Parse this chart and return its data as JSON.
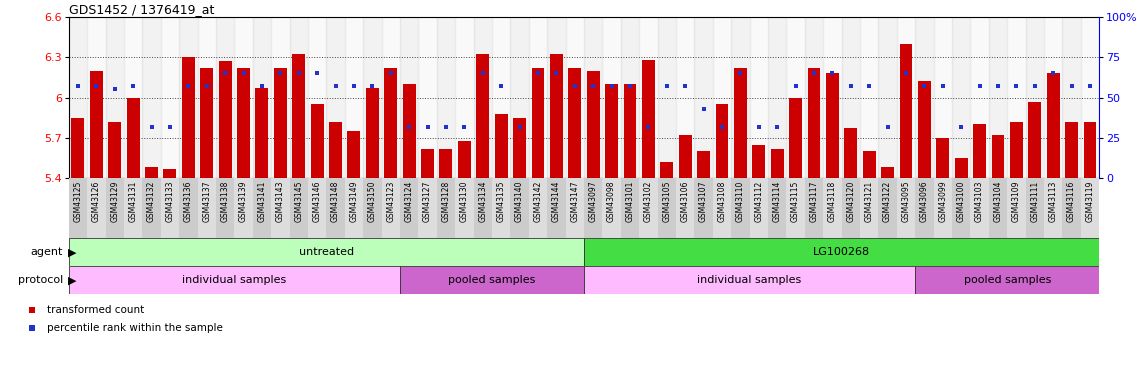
{
  "title": "GDS1452 / 1376419_at",
  "ylim": [
    5.4,
    6.6
  ],
  "yticks_left": [
    5.4,
    5.7,
    6.0,
    6.3,
    6.6
  ],
  "ytick_labels_left": [
    "5.4",
    "5.7",
    "6",
    "6.3",
    "6.6"
  ],
  "yticks_right_pct": [
    0,
    25,
    50,
    75,
    100
  ],
  "ytick_labels_right": [
    "0",
    "25",
    "50",
    "75",
    "100%"
  ],
  "bar_color": "#cc0000",
  "marker_color": "#2233cc",
  "samples": [
    "GSM43125",
    "GSM43126",
    "GSM43129",
    "GSM43131",
    "GSM43132",
    "GSM43133",
    "GSM43136",
    "GSM43137",
    "GSM43138",
    "GSM43139",
    "GSM43141",
    "GSM43143",
    "GSM43145",
    "GSM43146",
    "GSM43148",
    "GSM43149",
    "GSM43150",
    "GSM43123",
    "GSM43124",
    "GSM43127",
    "GSM43128",
    "GSM43130",
    "GSM43134",
    "GSM43135",
    "GSM43140",
    "GSM43142",
    "GSM43144",
    "GSM43147",
    "GSM43097",
    "GSM43098",
    "GSM43101",
    "GSM43102",
    "GSM43105",
    "GSM43106",
    "GSM43107",
    "GSM43108",
    "GSM43110",
    "GSM43112",
    "GSM43114",
    "GSM43115",
    "GSM43117",
    "GSM43118",
    "GSM43120",
    "GSM43121",
    "GSM43122",
    "GSM43095",
    "GSM43096",
    "GSM43099",
    "GSM43100",
    "GSM43103",
    "GSM43104",
    "GSM43109",
    "GSM43111",
    "GSM43113",
    "GSM43116",
    "GSM43119"
  ],
  "bar_values": [
    5.85,
    6.2,
    5.82,
    6.0,
    5.48,
    5.47,
    6.3,
    6.22,
    6.27,
    6.22,
    6.07,
    6.22,
    6.32,
    5.95,
    5.82,
    5.75,
    6.07,
    6.22,
    6.1,
    5.62,
    5.62,
    5.68,
    6.32,
    5.88,
    5.85,
    6.22,
    6.32,
    6.22,
    6.2,
    6.1,
    6.1,
    6.28,
    5.52,
    5.72,
    5.6,
    5.95,
    6.22,
    5.65,
    5.62,
    6.0,
    6.22,
    6.18,
    5.77,
    5.6,
    5.48,
    6.4,
    6.12,
    5.7,
    5.55,
    5.8,
    5.72,
    5.82,
    5.97,
    6.18,
    5.82,
    5.82
  ],
  "percentile_values_pct": [
    57,
    57,
    55,
    57,
    32,
    32,
    57,
    57,
    65,
    65,
    57,
    65,
    65,
    65,
    57,
    57,
    57,
    65,
    32,
    32,
    32,
    32,
    65,
    57,
    32,
    65,
    65,
    57,
    57,
    57,
    57,
    32,
    57,
    57,
    43,
    32,
    65,
    32,
    32,
    57,
    65,
    65,
    57,
    57,
    32,
    65,
    57,
    57,
    32,
    57,
    57,
    57,
    57,
    65,
    57,
    57
  ],
  "agent_regions": [
    {
      "text": "untreated",
      "start": 0,
      "end": 28,
      "color": "#bbffbb"
    },
    {
      "text": "LG100268",
      "start": 28,
      "end": 56,
      "color": "#44dd44"
    }
  ],
  "protocol_regions": [
    {
      "text": "individual samples",
      "start": 0,
      "end": 18,
      "color": "#ffbbff"
    },
    {
      "text": "pooled samples",
      "start": 18,
      "end": 28,
      "color": "#cc66cc"
    },
    {
      "text": "individual samples",
      "start": 28,
      "end": 46,
      "color": "#ffbbff"
    },
    {
      "text": "pooled samples",
      "start": 46,
      "end": 56,
      "color": "#cc66cc"
    }
  ]
}
